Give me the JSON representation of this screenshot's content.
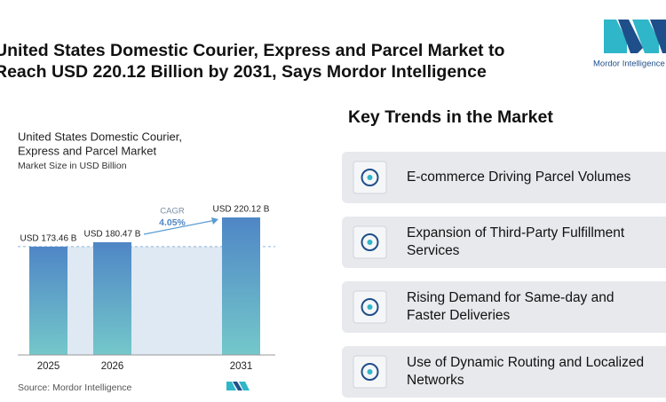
{
  "header": {
    "title_lines": [
      "United States Domestic Courier, Express and Parcel Market to",
      "Reach USD 220.12 Billion by 2031, Says Mordor Intelligence"
    ],
    "logo_text": "Mordor Intelligence"
  },
  "chart_data": {
    "type": "bar",
    "title_lines": [
      "United States Domestic Courier,",
      "Express and Parcel Market"
    ],
    "subtitle": "Market Size in USD Billion",
    "categories": [
      "2025",
      "2026",
      "2031"
    ],
    "values": [
      173.46,
      180.47,
      220.12
    ],
    "value_labels": [
      "USD 173.46 B",
      "USD 180.47 B",
      "USD 220.12 B"
    ],
    "color": "#4f86c6",
    "annotations": {
      "cagr_label": "CAGR",
      "cagr_value": "4.05%"
    },
    "source": "Source:  Mordor Intelligence"
  },
  "trends": {
    "title": "Key Trends in the Market",
    "items": [
      [
        "E-commerce Driving Parcel Volumes"
      ],
      [
        "Expansion of Third-Party Fulfillment",
        "Services"
      ],
      [
        "Rising Demand for Same-day and",
        "Faster Deliveries"
      ],
      [
        "Use of Dynamic Routing and Localized",
        "Networks"
      ]
    ]
  }
}
